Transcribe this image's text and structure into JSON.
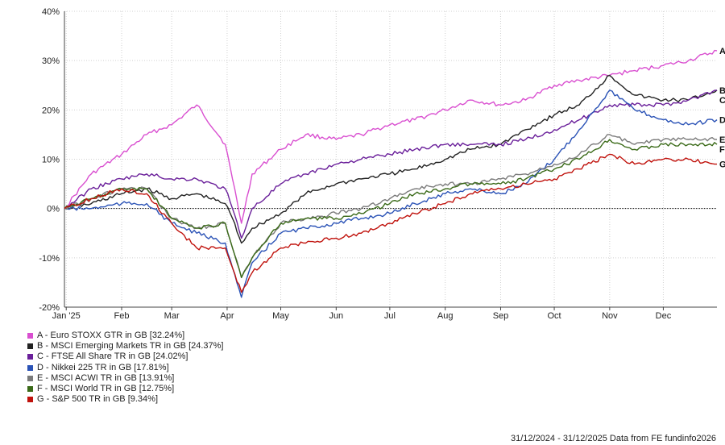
{
  "chart_data": {
    "type": "line",
    "x_range": [
      "2024-12-31",
      "2025-12-31"
    ],
    "x_tick_labels": [
      {
        "label": "Jan '25",
        "date": "2025-01-01"
      },
      {
        "label": "Feb",
        "date": "2025-02-01"
      },
      {
        "label": "Mar",
        "date": "2025-03-01"
      },
      {
        "label": "Apr",
        "date": "2025-04-01"
      },
      {
        "label": "May",
        "date": "2025-05-01"
      },
      {
        "label": "Jun",
        "date": "2025-06-01"
      },
      {
        "label": "Jul",
        "date": "2025-07-01"
      },
      {
        "label": "Aug",
        "date": "2025-08-01"
      },
      {
        "label": "Sep",
        "date": "2025-09-01"
      },
      {
        "label": "Oct",
        "date": "2025-10-01"
      },
      {
        "label": "Nov",
        "date": "2025-11-01"
      },
      {
        "label": "Dec",
        "date": "2025-12-01"
      }
    ],
    "ylim": [
      -20,
      40
    ],
    "y_ticks": [
      -20,
      -10,
      0,
      10,
      20,
      30,
      40
    ],
    "y_tick_labels": [
      "-20%",
      "-10%",
      "0%",
      "10%",
      "20%",
      "30%",
      "40%"
    ],
    "grid": true,
    "zero_line": "dotted",
    "legend_position": "bottom-left",
    "series": [
      {
        "id": "A",
        "name": "A - Euro STOXX GTR in GB [32.24%]",
        "color": "#d94fd0",
        "x": [
          "2024-12-31",
          "2025-01-15",
          "2025-02-01",
          "2025-02-15",
          "2025-03-01",
          "2025-03-15",
          "2025-03-31",
          "2025-04-04",
          "2025-04-09",
          "2025-04-15",
          "2025-05-01",
          "2025-05-15",
          "2025-06-01",
          "2025-06-15",
          "2025-07-01",
          "2025-07-15",
          "2025-08-01",
          "2025-08-15",
          "2025-09-01",
          "2025-09-15",
          "2025-10-01",
          "2025-10-15",
          "2025-11-01",
          "2025-11-15",
          "2025-12-01",
          "2025-12-15",
          "2025-12-31"
        ],
        "y": [
          0,
          7,
          11,
          15,
          17,
          21,
          13,
          6,
          -3,
          7,
          12,
          15,
          14,
          15,
          17,
          18,
          20,
          22,
          21,
          22,
          25,
          26,
          27,
          28,
          29,
          30,
          32
        ]
      },
      {
        "id": "B",
        "name": "B - MSCI Emerging Markets TR in GB [24.37%]",
        "color": "#222222",
        "x": [
          "2024-12-31",
          "2025-01-15",
          "2025-02-01",
          "2025-02-15",
          "2025-03-01",
          "2025-03-15",
          "2025-03-31",
          "2025-04-04",
          "2025-04-09",
          "2025-04-15",
          "2025-05-01",
          "2025-05-15",
          "2025-06-01",
          "2025-06-15",
          "2025-07-01",
          "2025-07-15",
          "2025-08-01",
          "2025-08-15",
          "2025-09-01",
          "2025-09-15",
          "2025-10-01",
          "2025-10-15",
          "2025-11-01",
          "2025-11-15",
          "2025-12-01",
          "2025-12-15",
          "2025-12-31"
        ],
        "y": [
          0,
          1,
          3,
          4,
          2,
          3,
          1,
          -2,
          -7,
          -4,
          -1,
          3,
          5,
          6,
          7,
          8,
          10,
          12,
          13,
          16,
          19,
          21,
          27,
          23,
          22,
          22,
          24
        ]
      },
      {
        "id": "C",
        "name": "C - FTSE All Share TR in GB [24.02%]",
        "color": "#6a1f9a",
        "x": [
          "2024-12-31",
          "2025-01-15",
          "2025-02-01",
          "2025-02-15",
          "2025-03-01",
          "2025-03-15",
          "2025-03-31",
          "2025-04-04",
          "2025-04-09",
          "2025-04-15",
          "2025-05-01",
          "2025-05-15",
          "2025-06-01",
          "2025-06-15",
          "2025-07-01",
          "2025-07-15",
          "2025-08-01",
          "2025-08-15",
          "2025-09-01",
          "2025-09-15",
          "2025-10-01",
          "2025-10-15",
          "2025-11-01",
          "2025-11-15",
          "2025-12-01",
          "2025-12-15",
          "2025-12-31"
        ],
        "y": [
          0,
          4,
          6,
          7,
          6,
          6,
          4,
          0,
          -6,
          0,
          5,
          7,
          9,
          10,
          11,
          12,
          13,
          13,
          13,
          14,
          16,
          18,
          21,
          21,
          21,
          22,
          24
        ]
      },
      {
        "id": "D",
        "name": "D - Nikkei 225 TR in GB [17.81%]",
        "color": "#2a52b6",
        "x": [
          "2024-12-31",
          "2025-01-15",
          "2025-02-01",
          "2025-02-15",
          "2025-03-01",
          "2025-03-15",
          "2025-03-31",
          "2025-04-04",
          "2025-04-09",
          "2025-04-15",
          "2025-05-01",
          "2025-05-15",
          "2025-06-01",
          "2025-06-15",
          "2025-07-01",
          "2025-07-15",
          "2025-08-01",
          "2025-08-15",
          "2025-09-01",
          "2025-09-15",
          "2025-10-01",
          "2025-10-15",
          "2025-11-01",
          "2025-11-15",
          "2025-12-01",
          "2025-12-15",
          "2025-12-31"
        ],
        "y": [
          0,
          0,
          1,
          1,
          -3,
          -5,
          -7,
          -12,
          -18,
          -11,
          -5,
          -4,
          -3,
          -2,
          -1,
          1,
          3,
          4,
          3,
          5,
          10,
          16,
          24,
          20,
          18,
          17,
          18
        ]
      },
      {
        "id": "E",
        "name": "E - MSCI ACWI TR in GB [13.91%]",
        "color": "#7a7a7a",
        "x": [
          "2024-12-31",
          "2025-01-15",
          "2025-02-01",
          "2025-02-15",
          "2025-03-01",
          "2025-03-15",
          "2025-03-31",
          "2025-04-04",
          "2025-04-09",
          "2025-04-15",
          "2025-05-01",
          "2025-05-15",
          "2025-06-01",
          "2025-06-15",
          "2025-07-01",
          "2025-07-15",
          "2025-08-01",
          "2025-08-15",
          "2025-09-01",
          "2025-09-15",
          "2025-10-01",
          "2025-10-15",
          "2025-11-01",
          "2025-11-15",
          "2025-12-01",
          "2025-12-15",
          "2025-12-31"
        ],
        "y": [
          0,
          2,
          4,
          4,
          -2,
          -4,
          -3,
          -8,
          -14,
          -10,
          -3,
          -2,
          -1,
          0,
          2,
          4,
          5,
          5,
          6,
          7,
          9,
          11,
          15,
          13,
          14,
          14,
          14
        ]
      },
      {
        "id": "F",
        "name": "F - MSCI World TR in GB [12.75%]",
        "color": "#3a6a18",
        "x": [
          "2024-12-31",
          "2025-01-15",
          "2025-02-01",
          "2025-02-15",
          "2025-03-01",
          "2025-03-15",
          "2025-03-31",
          "2025-04-04",
          "2025-04-09",
          "2025-04-15",
          "2025-05-01",
          "2025-05-15",
          "2025-06-01",
          "2025-06-15",
          "2025-07-01",
          "2025-07-15",
          "2025-08-01",
          "2025-08-15",
          "2025-09-01",
          "2025-09-15",
          "2025-10-01",
          "2025-10-15",
          "2025-11-01",
          "2025-11-15",
          "2025-12-01",
          "2025-12-15",
          "2025-12-31"
        ],
        "y": [
          0,
          2,
          4,
          4,
          -2,
          -4,
          -3,
          -8,
          -14,
          -10,
          -3,
          -2,
          -2,
          -1,
          1,
          3,
          4,
          5,
          5,
          6,
          8,
          10,
          14,
          12,
          13,
          13,
          13
        ]
      },
      {
        "id": "G",
        "name": "G - S&P 500 TR in GB [9.34%]",
        "color": "#c0120c",
        "x": [
          "2024-12-31",
          "2025-01-15",
          "2025-02-01",
          "2025-02-15",
          "2025-03-01",
          "2025-03-15",
          "2025-03-31",
          "2025-04-04",
          "2025-04-09",
          "2025-04-15",
          "2025-05-01",
          "2025-05-15",
          "2025-06-01",
          "2025-06-15",
          "2025-07-01",
          "2025-07-15",
          "2025-08-01",
          "2025-08-15",
          "2025-09-01",
          "2025-09-15",
          "2025-10-01",
          "2025-10-15",
          "2025-11-01",
          "2025-11-15",
          "2025-12-01",
          "2025-12-15",
          "2025-12-31"
        ],
        "y": [
          0,
          2,
          4,
          3,
          -3,
          -8,
          -8,
          -12,
          -17,
          -13,
          -8,
          -7,
          -6,
          -5,
          -3,
          -1,
          1,
          3,
          4,
          5,
          6,
          8,
          11,
          9,
          10,
          10,
          9
        ]
      }
    ]
  },
  "footer": "31/12/2024 - 31/12/2025 Data from FE fundinfo2026"
}
